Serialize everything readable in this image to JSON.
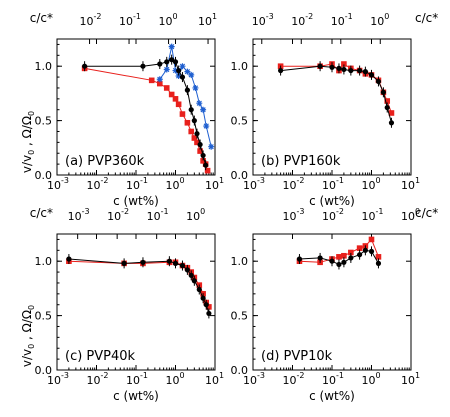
{
  "figure": {
    "bottom_axis_label": "c (wt%)",
    "top_axis_label": "c/c*",
    "ylabel_text": "̅v/v₀ , ̅Ω/Ω₀",
    "ylabel_part1": "v/v",
    "ylabel_sub1": "0",
    "ylabel_sep": " , ",
    "ylabel_part2": "Ω/Ω",
    "ylabel_sub2": "0"
  },
  "chart_data": [
    {
      "type": "scatter",
      "panel_label": "(a) PVP360k",
      "xscale": "log",
      "xlim": [
        0.001,
        10
      ],
      "ylim": [
        0,
        1.25
      ],
      "yticks": [
        0.0,
        0.5,
        1.0
      ],
      "x_tick_labels": [
        "10",
        "10",
        "10",
        "10",
        "10"
      ],
      "x_tick_exponents": [
        "-3",
        "-2",
        "-1",
        "0",
        "1"
      ],
      "top_axis": {
        "label": "c/c*",
        "scale": "log",
        "ticks": [
          0.01,
          0.1,
          1,
          10
        ],
        "tick_labels": [
          "10",
          "10",
          "10",
          "10"
        ],
        "tick_exponents": [
          "-2",
          "-1",
          "0",
          "1"
        ],
        "c_over_cstar_per_c": 1.5
      },
      "series": [
        {
          "color": "#e8201c",
          "marker": "square",
          "x": [
            0.005,
            0.25,
            0.4,
            0.6,
            0.8,
            1.0,
            1.2,
            1.5,
            2.0,
            2.5,
            3.0,
            3.5,
            4.2,
            5.0,
            5.8,
            6.5
          ],
          "y": [
            0.98,
            0.87,
            0.84,
            0.8,
            0.74,
            0.7,
            0.65,
            0.56,
            0.48,
            0.4,
            0.34,
            0.3,
            0.22,
            0.13,
            0.1,
            0.04
          ]
        },
        {
          "color": "#1f5fd0",
          "marker": "star",
          "x": [
            0.4,
            0.6,
            0.8,
            1.0,
            1.2,
            1.5,
            2.0,
            2.5,
            3.2,
            4.0,
            5.0,
            6.0,
            8.0
          ],
          "y": [
            0.88,
            0.97,
            1.18,
            0.96,
            0.91,
            1.0,
            0.95,
            0.92,
            0.8,
            0.66,
            0.6,
            0.45,
            0.26
          ]
        },
        {
          "color": "#000000",
          "marker": "circle",
          "x": [
            0.005,
            0.15,
            0.4,
            0.6,
            0.8,
            1.0,
            1.2,
            1.5,
            2.0,
            2.5,
            3.0,
            3.5,
            4.2,
            5.0,
            5.8
          ],
          "y": [
            1.0,
            1.0,
            1.02,
            1.04,
            1.06,
            1.04,
            0.96,
            0.9,
            0.78,
            0.6,
            0.5,
            0.38,
            0.28,
            0.18,
            0.09
          ]
        }
      ]
    },
    {
      "type": "scatter",
      "panel_label": "(b) PVP160k",
      "xscale": "log",
      "xlim": [
        0.001,
        10
      ],
      "ylim": [
        0,
        1.25
      ],
      "yticks": [
        0.0,
        0.5,
        1.0
      ],
      "x_tick_labels": [
        "10",
        "10",
        "10",
        "10",
        "10"
      ],
      "x_tick_exponents": [
        "-3",
        "-2",
        "-1",
        "0",
        "1"
      ],
      "top_axis": {
        "label": "c/c*",
        "scale": "log",
        "ticks": [
          0.001,
          0.01,
          0.1,
          1
        ],
        "tick_labels": [
          "10",
          "10",
          "10",
          "10"
        ],
        "tick_exponents": [
          "-3",
          "-2",
          "-1",
          "0"
        ],
        "c_over_cstar_per_c": 0.6
      },
      "series": [
        {
          "color": "#e8201c",
          "marker": "square",
          "x": [
            0.005,
            0.05,
            0.1,
            0.15,
            0.2,
            0.3,
            0.5,
            0.7,
            1.0,
            1.5,
            2.0,
            2.5,
            3.2
          ],
          "y": [
            1.0,
            1.0,
            1.02,
            0.96,
            1.02,
            0.98,
            0.96,
            0.93,
            0.92,
            0.87,
            0.76,
            0.68,
            0.57
          ]
        },
        {
          "color": "#000000",
          "marker": "circle",
          "x": [
            0.005,
            0.05,
            0.1,
            0.15,
            0.2,
            0.3,
            0.5,
            0.7,
            1.0,
            1.5,
            2.0,
            2.5,
            3.2
          ],
          "y": [
            0.96,
            1.0,
            0.99,
            0.98,
            0.97,
            0.96,
            0.96,
            0.95,
            0.92,
            0.86,
            0.76,
            0.62,
            0.48
          ]
        }
      ]
    },
    {
      "type": "scatter",
      "panel_label": "(c) PVP40k",
      "xscale": "log",
      "xlim": [
        0.001,
        10
      ],
      "ylim": [
        0,
        1.25
      ],
      "yticks": [
        0.0,
        0.5,
        1.0
      ],
      "x_tick_labels": [
        "10",
        "10",
        "10",
        "10",
        "10"
      ],
      "x_tick_exponents": [
        "-3",
        "-2",
        "-1",
        "0",
        "1"
      ],
      "top_axis": {
        "label": "c/c*",
        "scale": "log",
        "ticks": [
          0.001,
          0.01,
          0.1,
          1
        ],
        "tick_labels": [
          "10",
          "10",
          "10",
          "10"
        ],
        "tick_exponents": [
          "-3",
          "-2",
          "-1",
          "0"
        ],
        "c_over_cstar_per_c": 0.3
      },
      "series": [
        {
          "color": "#e8201c",
          "marker": "square",
          "x": [
            0.002,
            0.05,
            0.15,
            0.7,
            1.0,
            1.5,
            2.0,
            2.5,
            3.0,
            4.0,
            5.0,
            6.0,
            7.0
          ],
          "y": [
            1.0,
            0.98,
            0.98,
            0.99,
            0.99,
            0.96,
            0.94,
            0.9,
            0.85,
            0.78,
            0.7,
            0.62,
            0.58
          ]
        },
        {
          "color": "#000000",
          "marker": "circle",
          "x": [
            0.002,
            0.05,
            0.15,
            0.7,
            1.0,
            1.5,
            2.0,
            2.5,
            3.0,
            4.0,
            5.0,
            6.0,
            7.0
          ],
          "y": [
            1.02,
            0.98,
            0.99,
            1.0,
            0.98,
            0.96,
            0.92,
            0.87,
            0.82,
            0.74,
            0.66,
            0.6,
            0.52
          ]
        }
      ]
    },
    {
      "type": "scatter",
      "panel_label": "(d) PVP10k",
      "xscale": "log",
      "xlim": [
        0.001,
        10
      ],
      "ylim": [
        0,
        1.25
      ],
      "yticks": [
        0.0,
        0.5,
        1.0
      ],
      "x_tick_labels": [
        "10",
        "10",
        "10",
        "10",
        "10"
      ],
      "x_tick_exponents": [
        "-3",
        "-2",
        "-1",
        "0",
        "1"
      ],
      "top_axis": {
        "label": "c/c*",
        "scale": "log",
        "ticks": [
          0.001,
          0.01,
          0.1,
          1
        ],
        "tick_labels": [
          "10",
          "10",
          "10",
          "10"
        ],
        "tick_exponents": [
          "-3",
          "-2",
          "-1",
          "0"
        ],
        "c_over_cstar_per_c": 0.1
      },
      "series": [
        {
          "color": "#e8201c",
          "marker": "square",
          "x": [
            0.015,
            0.05,
            0.1,
            0.15,
            0.2,
            0.3,
            0.5,
            0.7,
            1.0,
            1.5
          ],
          "y": [
            1.0,
            0.99,
            1.02,
            1.04,
            1.05,
            1.08,
            1.12,
            1.14,
            1.2,
            1.04
          ]
        },
        {
          "color": "#000000",
          "marker": "circle",
          "x": [
            0.015,
            0.05,
            0.1,
            0.15,
            0.2,
            0.3,
            0.5,
            0.7,
            1.0,
            1.5
          ],
          "y": [
            1.02,
            1.03,
            1.0,
            0.97,
            0.99,
            1.03,
            1.06,
            1.1,
            1.09,
            0.98
          ]
        }
      ]
    }
  ]
}
